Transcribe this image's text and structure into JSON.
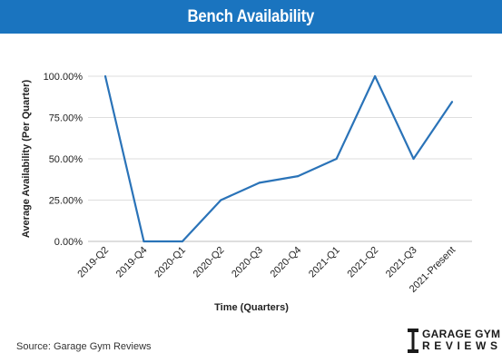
{
  "header": {
    "title": "Bench Availability",
    "background": "#1a74bf"
  },
  "chart_data": {
    "type": "line",
    "title": "Bench Availability",
    "xlabel": "Time (Quarters)",
    "ylabel": "Average Availability (Per Quarter)",
    "categories": [
      "2019-Q2",
      "2019-Q4",
      "2020-Q1",
      "2020-Q2",
      "2020-Q3",
      "2020-Q4",
      "2021-Q1",
      "2021-Q2",
      "2021-Q3",
      "2021-Present"
    ],
    "series": [
      {
        "values": [
          100,
          0,
          0,
          25,
          35.5,
          39.5,
          50,
          100,
          50,
          84.5
        ],
        "color": "#2a73b8"
      }
    ],
    "yticks": [
      "100.00%",
      "75.00%",
      "50.00%",
      "25.00%",
      "0.00%"
    ],
    "ytick_values": [
      100,
      75,
      50,
      25,
      0
    ],
    "ylim": [
      0,
      100
    ],
    "grid": true,
    "legend": "none"
  },
  "footer": {
    "source": "Source: Garage Gym Reviews",
    "logo_line1": "GARAGE GYM",
    "logo_line2": "REVIEWS"
  }
}
